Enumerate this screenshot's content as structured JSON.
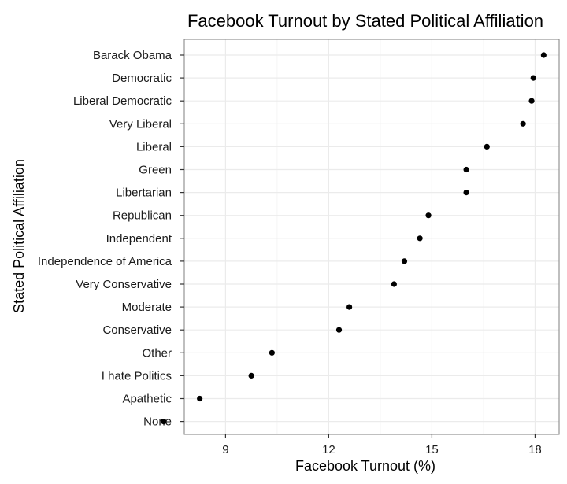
{
  "chart_data": {
    "type": "scatter",
    "title": "Facebook Turnout by Stated Political Affiliation",
    "xlabel": "Facebook Turnout (%)",
    "ylabel": "Stated Political Affiliation",
    "xlim": [
      7.8,
      18.7
    ],
    "x_ticks": [
      9,
      12,
      15,
      18
    ],
    "grid": true,
    "categories": [
      "Barack Obama",
      "Democratic",
      "Liberal Democratic",
      "Very Liberal",
      "Liberal",
      "Green",
      "Libertarian",
      "Republican",
      "Independent",
      "Independence of America",
      "Very Conservative",
      "Moderate",
      "Conservative",
      "Other",
      "I hate Politics",
      "Apathetic",
      "None"
    ],
    "values": [
      18.25,
      17.95,
      17.9,
      17.65,
      16.6,
      16.0,
      16.0,
      14.9,
      14.65,
      14.2,
      13.9,
      12.6,
      12.3,
      10.35,
      9.75,
      8.25,
      7.2
    ],
    "colors": {
      "point": "#000000",
      "panel_border": "#7f7f7f",
      "grid_major": "#ebebeb",
      "grid_minor": "#f5f5f5",
      "tick": "#333333"
    }
  }
}
